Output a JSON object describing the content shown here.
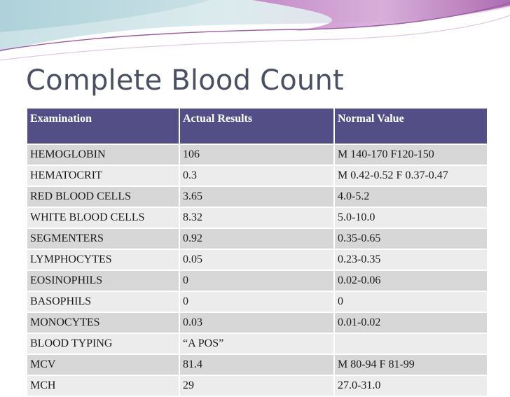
{
  "slide": {
    "title": "Complete Blood Count",
    "colors": {
      "header_bg": "#544e86",
      "row_bg": "#d7d7d7",
      "row_alt_bg": "#ececec",
      "title_text": "#4a4f63",
      "banner_accent": "#b06ab0"
    }
  },
  "table": {
    "headers": [
      "Examination",
      "Actual Results",
      "Normal Value"
    ],
    "rows": [
      [
        "HEMOGLOBIN",
        "106",
        "M 140-170 F120-150"
      ],
      [
        "HEMATOCRIT",
        "0.3",
        "M 0.42-0.52 F 0.37-0.47"
      ],
      [
        "RED BLOOD CELLS",
        "3.65",
        "4.0-5.2"
      ],
      [
        "WHITE BLOOD CELLS",
        "8.32",
        "5.0-10.0"
      ],
      [
        "SEGMENTERS",
        "0.92",
        "0.35-0.65"
      ],
      [
        "LYMPHOCYTES",
        "0.05",
        "0.23-0.35"
      ],
      [
        "EOSINOPHILS",
        "0",
        "0.02-0.06"
      ],
      [
        "BASOPHILS",
        "0",
        "0"
      ],
      [
        "MONOCYTES",
        "0.03",
        "0.01-0.02"
      ],
      [
        "BLOOD TYPING",
        "“A POS”",
        ""
      ],
      [
        "MCV",
        "81.4",
        "M 80-94 F 81-99"
      ],
      [
        "MCH",
        "29",
        "27.0-31.0"
      ]
    ]
  }
}
